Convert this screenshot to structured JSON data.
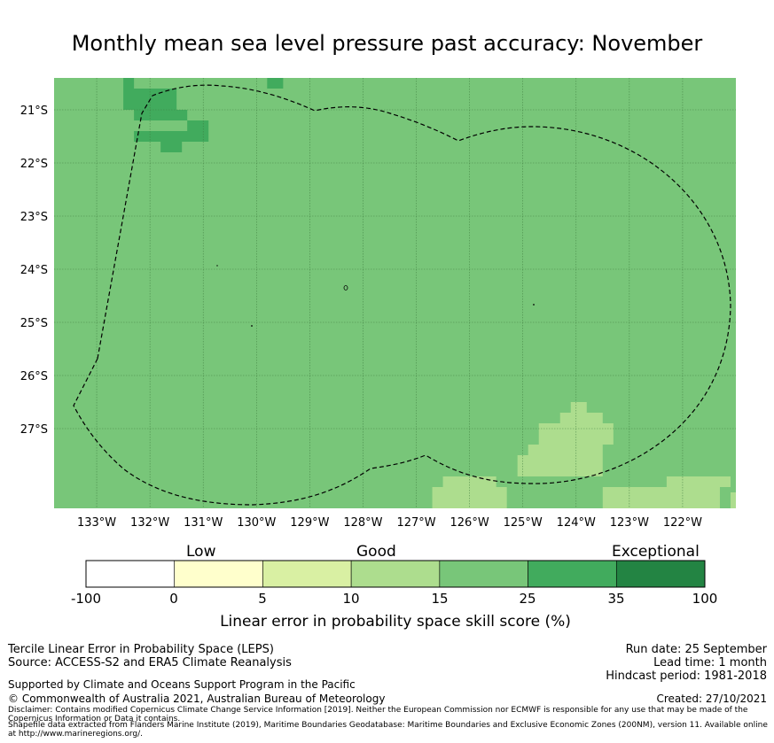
{
  "title": "Monthly mean sea level pressure past accuracy: November",
  "chart_data": {
    "type": "heatmap",
    "title": "Monthly mean sea level pressure past accuracy: November",
    "xlabel": "",
    "ylabel": "",
    "xlim": [
      -133.8,
      -121.0
    ],
    "ylim": [
      -28.5,
      -20.4
    ],
    "x_ticks": [
      "133°W",
      "132°W",
      "131°W",
      "130°W",
      "129°W",
      "128°W",
      "127°W",
      "126°W",
      "125°W",
      "124°W",
      "123°W",
      "122°W"
    ],
    "x_tick_values": [
      -133,
      -132,
      -131,
      -130,
      -129,
      -128,
      -127,
      -126,
      -125,
      -124,
      -123,
      -122
    ],
    "y_ticks": [
      "21°S",
      "22°S",
      "23°S",
      "24°S",
      "25°S",
      "26°S",
      "27°S"
    ],
    "y_tick_values": [
      -21,
      -22,
      -23,
      -24,
      -25,
      -26,
      -27
    ],
    "grid": true,
    "background_category": "15-25",
    "regions": [
      {
        "category": "25-35",
        "cells": [
          [
            -132.5,
            -132.3,
            -20.4,
            -20.6
          ],
          [
            -132.5,
            -131.5,
            -20.6,
            -21.0
          ],
          [
            -132.3,
            -131.3,
            -21.0,
            -21.2
          ],
          [
            -131.3,
            -130.9,
            -21.2,
            -21.4
          ],
          [
            -132.3,
            -130.9,
            -21.4,
            -21.6
          ],
          [
            -131.8,
            -131.4,
            -21.6,
            -21.8
          ],
          [
            -129.8,
            -129.5,
            -20.4,
            -20.6
          ]
        ]
      },
      {
        "category": "10-15",
        "cells": [
          [
            -124.1,
            -123.8,
            -26.5,
            -26.7
          ],
          [
            -124.3,
            -123.5,
            -26.7,
            -26.9
          ],
          [
            -124.7,
            -123.3,
            -26.9,
            -27.3
          ],
          [
            -124.9,
            -123.5,
            -27.3,
            -27.5
          ],
          [
            -125.1,
            -123.5,
            -27.5,
            -27.9
          ],
          [
            -126.5,
            -125.5,
            -27.9,
            -28.1
          ],
          [
            -126.7,
            -125.3,
            -28.1,
            -28.5
          ],
          [
            -123.5,
            -121.3,
            -28.1,
            -28.5
          ],
          [
            -122.3,
            -121.1,
            -27.9,
            -28.1
          ],
          [
            -121.1,
            -121.0,
            -28.2,
            -28.5
          ]
        ]
      }
    ],
    "legend_categories": [
      "Low",
      "Good",
      "Exceptional"
    ],
    "colorbar": {
      "ticks": [
        "-100",
        "0",
        "5",
        "10",
        "15",
        "25",
        "35",
        "100"
      ],
      "bins": [
        {
          "range": "-100 to 0",
          "color": "#ffffff"
        },
        {
          "range": "0 to 5",
          "color": "#ffffcc"
        },
        {
          "range": "5 to 10",
          "color": "#d9f0a3"
        },
        {
          "range": "10 to 15",
          "color": "#addd8e"
        },
        {
          "range": "15 to 25",
          "color": "#78c679"
        },
        {
          "range": "25 to 35",
          "color": "#41ab5d"
        },
        {
          "range": "35 to 100",
          "color": "#238443"
        }
      ],
      "label": "Linear error in probability space skill score (%)"
    },
    "annotations": [
      "dashed EEZ boundary outline (Pitcairn Islands)"
    ]
  },
  "footer": {
    "left_line1": "Tercile Linear Error in Probability Space (LEPS)",
    "left_line2": "Source: ACCESS-S2 and ERA5 Climate Reanalysis",
    "support": "Supported by Climate and Oceans Support Program in the Pacific",
    "copyright": "© Commonwealth of Australia 2021, Australian Bureau of Meteorology",
    "disclaimer": "Disclaimer: Contains modified Copernicus Climate Change Service Information [2019]. Neither the European Commission nor ECMWF is responsible for any use that may be made of the Copernicus Information or Data it contains.",
    "shapefile": "Shapefile data extracted from Flanders Marine Institute (2019), Maritime Boundaries Geodatabase: Maritime Boundaries and Exclusive Economic Zones (200NM), version 11. Available online at http://www.marineregions.org/.",
    "run_date": "Run date: 25 September",
    "lead_time": "Lead time: 1 month",
    "hindcast": "Hindcast period: 1981-2018",
    "created": "Created: 27/10/2021"
  },
  "colors": {
    "background_cell": "#78c679",
    "grid": "#3d7a3d",
    "outline": "#000000"
  }
}
